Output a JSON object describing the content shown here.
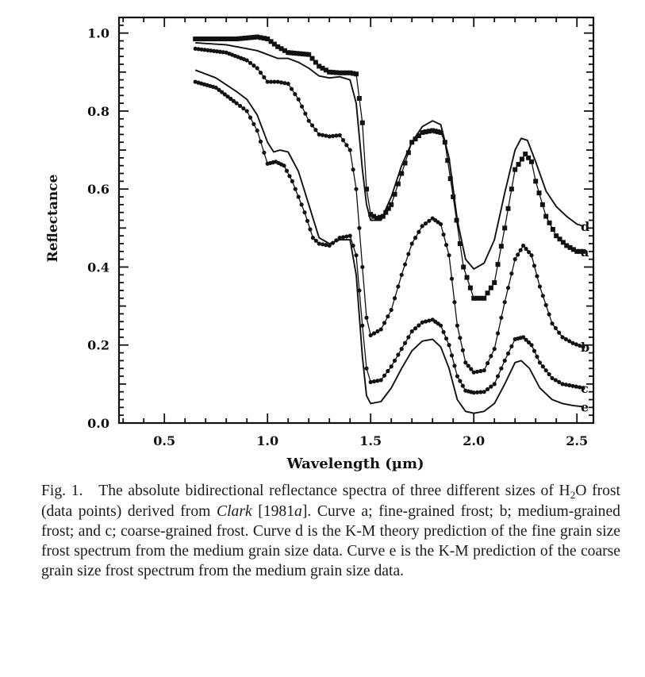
{
  "chart_data": {
    "type": "line",
    "xlabel": "Wavelength (µm)",
    "ylabel": "Reflectance",
    "xlim": [
      0.28,
      2.58
    ],
    "ylim": [
      0.0,
      1.04
    ],
    "x_ticks": [
      "0.5",
      "1.0",
      "1.5",
      "2.0",
      "2.5"
    ],
    "y_ticks": [
      "0.0",
      "0.2",
      "0.4",
      "0.6",
      "0.8",
      "1.0"
    ],
    "grid": false,
    "series": [
      {
        "name": "a",
        "marker": "square",
        "points": [
          [
            0.65,
            0.985
          ],
          [
            0.75,
            0.985
          ],
          [
            0.85,
            0.985
          ],
          [
            0.95,
            0.99
          ],
          [
            1.0,
            0.985
          ],
          [
            1.05,
            0.965
          ],
          [
            1.1,
            0.95
          ],
          [
            1.2,
            0.945
          ],
          [
            1.25,
            0.915
          ],
          [
            1.3,
            0.9
          ],
          [
            1.35,
            0.898
          ],
          [
            1.4,
            0.898
          ],
          [
            1.43,
            0.895
          ],
          [
            1.46,
            0.77
          ],
          [
            1.48,
            0.6
          ],
          [
            1.5,
            0.535
          ],
          [
            1.53,
            0.525
          ],
          [
            1.56,
            0.53
          ],
          [
            1.6,
            0.56
          ],
          [
            1.65,
            0.64
          ],
          [
            1.7,
            0.72
          ],
          [
            1.75,
            0.745
          ],
          [
            1.8,
            0.75
          ],
          [
            1.84,
            0.745
          ],
          [
            1.86,
            0.72
          ],
          [
            1.9,
            0.58
          ],
          [
            1.95,
            0.4
          ],
          [
            2.0,
            0.32
          ],
          [
            2.05,
            0.32
          ],
          [
            2.1,
            0.36
          ],
          [
            2.15,
            0.5
          ],
          [
            2.2,
            0.65
          ],
          [
            2.25,
            0.69
          ],
          [
            2.28,
            0.67
          ],
          [
            2.3,
            0.62
          ],
          [
            2.35,
            0.53
          ],
          [
            2.4,
            0.48
          ],
          [
            2.45,
            0.455
          ],
          [
            2.5,
            0.44
          ],
          [
            2.53,
            0.44
          ]
        ]
      },
      {
        "name": "b",
        "marker": "dot",
        "points": [
          [
            0.65,
            0.96
          ],
          [
            0.8,
            0.95
          ],
          [
            0.9,
            0.93
          ],
          [
            0.95,
            0.91
          ],
          [
            1.0,
            0.875
          ],
          [
            1.05,
            0.875
          ],
          [
            1.1,
            0.87
          ],
          [
            1.15,
            0.83
          ],
          [
            1.2,
            0.775
          ],
          [
            1.25,
            0.74
          ],
          [
            1.3,
            0.735
          ],
          [
            1.35,
            0.738
          ],
          [
            1.4,
            0.7
          ],
          [
            1.43,
            0.6
          ],
          [
            1.46,
            0.4
          ],
          [
            1.48,
            0.27
          ],
          [
            1.5,
            0.225
          ],
          [
            1.55,
            0.24
          ],
          [
            1.6,
            0.29
          ],
          [
            1.65,
            0.38
          ],
          [
            1.7,
            0.46
          ],
          [
            1.75,
            0.505
          ],
          [
            1.8,
            0.525
          ],
          [
            1.84,
            0.51
          ],
          [
            1.88,
            0.43
          ],
          [
            1.92,
            0.25
          ],
          [
            1.96,
            0.155
          ],
          [
            2.0,
            0.13
          ],
          [
            2.05,
            0.135
          ],
          [
            2.1,
            0.19
          ],
          [
            2.15,
            0.31
          ],
          [
            2.2,
            0.42
          ],
          [
            2.24,
            0.455
          ],
          [
            2.28,
            0.43
          ],
          [
            2.32,
            0.35
          ],
          [
            2.38,
            0.255
          ],
          [
            2.43,
            0.22
          ],
          [
            2.48,
            0.205
          ],
          [
            2.53,
            0.195
          ]
        ]
      },
      {
        "name": "c",
        "marker": "dot",
        "points": [
          [
            0.65,
            0.875
          ],
          [
            0.75,
            0.86
          ],
          [
            0.85,
            0.82
          ],
          [
            0.9,
            0.8
          ],
          [
            0.95,
            0.75
          ],
          [
            1.0,
            0.665
          ],
          [
            1.04,
            0.67
          ],
          [
            1.08,
            0.66
          ],
          [
            1.12,
            0.62
          ],
          [
            1.18,
            0.54
          ],
          [
            1.22,
            0.475
          ],
          [
            1.25,
            0.46
          ],
          [
            1.3,
            0.455
          ],
          [
            1.35,
            0.475
          ],
          [
            1.4,
            0.48
          ],
          [
            1.43,
            0.43
          ],
          [
            1.46,
            0.25
          ],
          [
            1.48,
            0.14
          ],
          [
            1.5,
            0.105
          ],
          [
            1.55,
            0.11
          ],
          [
            1.6,
            0.145
          ],
          [
            1.65,
            0.19
          ],
          [
            1.7,
            0.235
          ],
          [
            1.75,
            0.258
          ],
          [
            1.8,
            0.265
          ],
          [
            1.84,
            0.25
          ],
          [
            1.88,
            0.2
          ],
          [
            1.92,
            0.12
          ],
          [
            1.96,
            0.083
          ],
          [
            2.0,
            0.078
          ],
          [
            2.05,
            0.08
          ],
          [
            2.1,
            0.1
          ],
          [
            2.15,
            0.16
          ],
          [
            2.2,
            0.215
          ],
          [
            2.24,
            0.22
          ],
          [
            2.28,
            0.2
          ],
          [
            2.32,
            0.155
          ],
          [
            2.38,
            0.115
          ],
          [
            2.43,
            0.1
          ],
          [
            2.48,
            0.095
          ],
          [
            2.53,
            0.09
          ]
        ]
      },
      {
        "name": "d",
        "marker": "none",
        "points": [
          [
            0.65,
            0.975
          ],
          [
            0.8,
            0.97
          ],
          [
            0.9,
            0.96
          ],
          [
            0.95,
            0.955
          ],
          [
            1.0,
            0.945
          ],
          [
            1.05,
            0.935
          ],
          [
            1.1,
            0.935
          ],
          [
            1.15,
            0.925
          ],
          [
            1.2,
            0.91
          ],
          [
            1.25,
            0.89
          ],
          [
            1.3,
            0.885
          ],
          [
            1.35,
            0.888
          ],
          [
            1.4,
            0.88
          ],
          [
            1.43,
            0.82
          ],
          [
            1.46,
            0.65
          ],
          [
            1.48,
            0.56
          ],
          [
            1.5,
            0.52
          ],
          [
            1.55,
            0.52
          ],
          [
            1.6,
            0.58
          ],
          [
            1.65,
            0.66
          ],
          [
            1.7,
            0.72
          ],
          [
            1.75,
            0.76
          ],
          [
            1.8,
            0.775
          ],
          [
            1.84,
            0.765
          ],
          [
            1.88,
            0.68
          ],
          [
            1.92,
            0.52
          ],
          [
            1.96,
            0.42
          ],
          [
            2.0,
            0.395
          ],
          [
            2.05,
            0.41
          ],
          [
            2.1,
            0.47
          ],
          [
            2.15,
            0.59
          ],
          [
            2.2,
            0.7
          ],
          [
            2.23,
            0.73
          ],
          [
            2.26,
            0.725
          ],
          [
            2.3,
            0.67
          ],
          [
            2.35,
            0.595
          ],
          [
            2.4,
            0.555
          ],
          [
            2.45,
            0.53
          ],
          [
            2.5,
            0.51
          ],
          [
            2.53,
            0.505
          ]
        ]
      },
      {
        "name": "e",
        "marker": "none",
        "points": [
          [
            0.65,
            0.905
          ],
          [
            0.75,
            0.885
          ],
          [
            0.85,
            0.85
          ],
          [
            0.9,
            0.83
          ],
          [
            0.95,
            0.79
          ],
          [
            1.0,
            0.72
          ],
          [
            1.03,
            0.695
          ],
          [
            1.06,
            0.7
          ],
          [
            1.1,
            0.695
          ],
          [
            1.15,
            0.645
          ],
          [
            1.2,
            0.56
          ],
          [
            1.25,
            0.475
          ],
          [
            1.3,
            0.46
          ],
          [
            1.35,
            0.47
          ],
          [
            1.4,
            0.47
          ],
          [
            1.43,
            0.38
          ],
          [
            1.46,
            0.17
          ],
          [
            1.48,
            0.07
          ],
          [
            1.5,
            0.05
          ],
          [
            1.55,
            0.055
          ],
          [
            1.6,
            0.09
          ],
          [
            1.65,
            0.14
          ],
          [
            1.7,
            0.185
          ],
          [
            1.75,
            0.21
          ],
          [
            1.8,
            0.215
          ],
          [
            1.84,
            0.195
          ],
          [
            1.88,
            0.14
          ],
          [
            1.92,
            0.06
          ],
          [
            1.96,
            0.03
          ],
          [
            2.0,
            0.025
          ],
          [
            2.05,
            0.03
          ],
          [
            2.1,
            0.05
          ],
          [
            2.15,
            0.1
          ],
          [
            2.2,
            0.155
          ],
          [
            2.23,
            0.16
          ],
          [
            2.27,
            0.14
          ],
          [
            2.32,
            0.09
          ],
          [
            2.38,
            0.06
          ],
          [
            2.43,
            0.05
          ],
          [
            2.48,
            0.045
          ],
          [
            2.53,
            0.042
          ]
        ]
      }
    ]
  },
  "caption": {
    "prefix": "Fig. 1.",
    "text_1": "The absolute bidirectional reflectance spectra of three different sizes of H",
    "subscript": "2",
    "text_2": "O frost (data points) derived from ",
    "italic": "Clark",
    "text_3": " [1981",
    "italic_2": "a",
    "text_4": "]. Curve a; fine-grained frost; b; medium-grained frost; and c; coarse-grained frost. Curve d is the K-M theory prediction of the fine grain size frost spectrum from the medium grain size data. Curve e is the K-M prediction of the coarse grain size frost spectrum from the medium grain size data."
  }
}
